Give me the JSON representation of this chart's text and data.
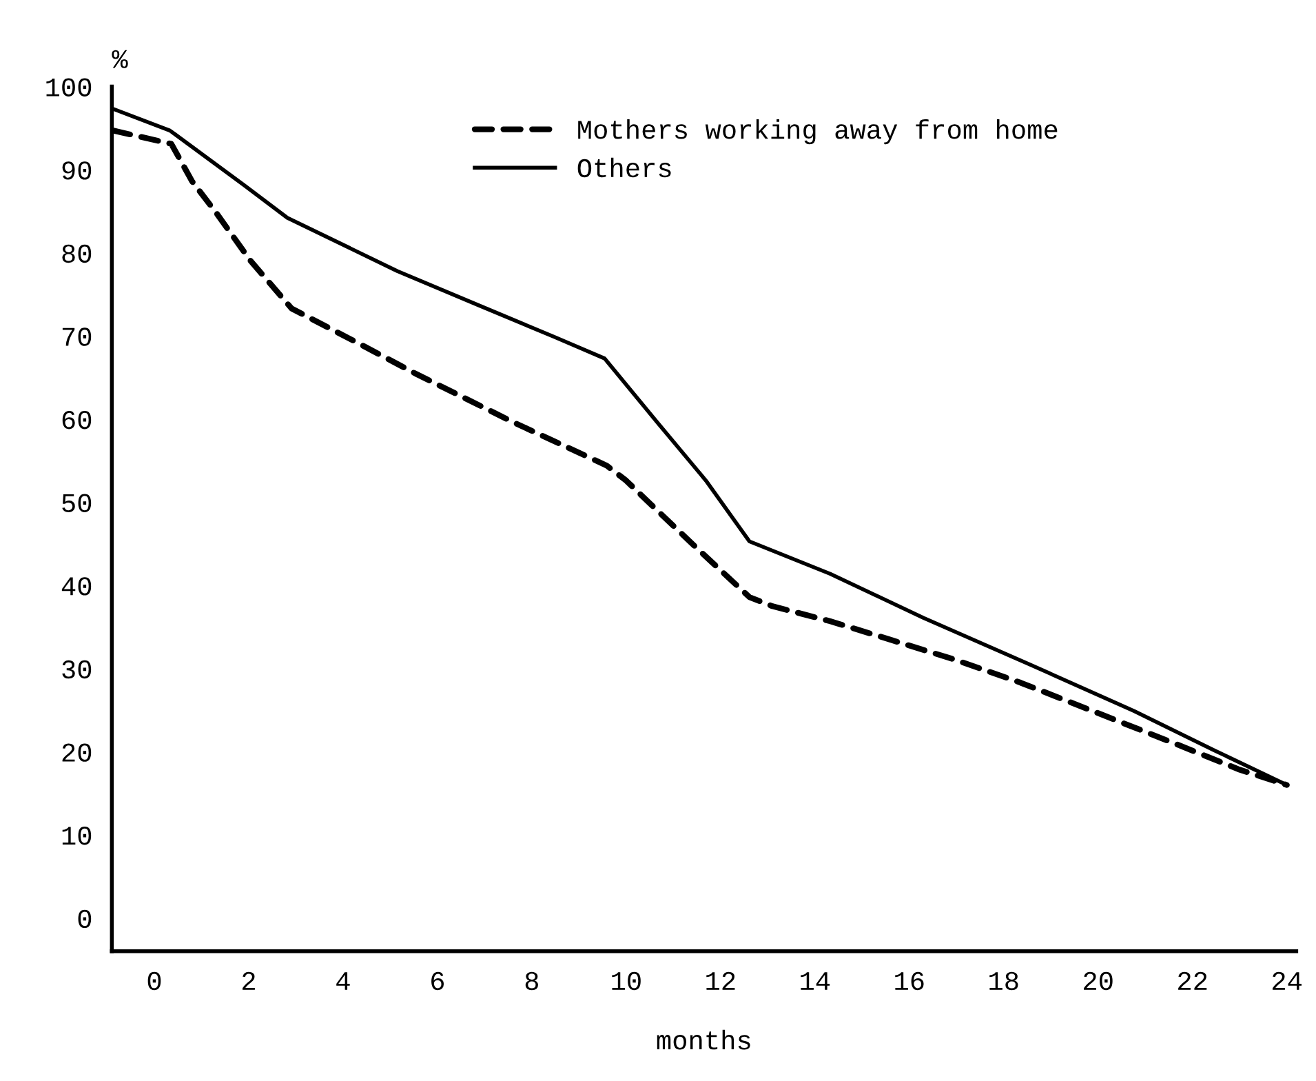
{
  "chart_data": {
    "type": "line",
    "ylabel": "%",
    "xlabel": "months",
    "xlim": [
      -0.9,
      24.2
    ],
    "xticks": [
      0,
      2,
      4,
      6,
      8,
      10,
      12,
      14,
      16,
      18,
      20,
      22,
      24
    ],
    "ylim": [
      -4,
      100
    ],
    "yticks": [
      0,
      10,
      20,
      30,
      40,
      50,
      60,
      70,
      80,
      90,
      100
    ],
    "grid": false,
    "legend": "top right",
    "marker": "none",
    "series": [
      {
        "name": "Mothers working away from home",
        "color": "#000000",
        "line_style": "dashed",
        "x": [
          -0.87,
          0.36,
          0.8,
          1.3,
          2.03,
          2.91,
          4.33,
          5.56,
          7.58,
          9.59,
          10.0,
          10.66,
          11.55,
          12.61,
          13.1,
          14.32,
          15.64,
          16.95,
          18.36,
          20.24,
          21.84,
          22.97,
          24.0
        ],
        "values": [
          94.7,
          93.1,
          88.6,
          84.9,
          79.1,
          73.3,
          69.1,
          65.4,
          59.7,
          54.4,
          52.6,
          49.0,
          44.2,
          38.6,
          37.5,
          35.7,
          33.4,
          31.1,
          28.3,
          24.1,
          20.5,
          17.9,
          16.0
        ]
      },
      {
        "name": "Others",
        "color": "#000000",
        "line_style": "solid",
        "x": [
          -0.87,
          0.33,
          1.91,
          2.82,
          5.15,
          6.91,
          8.47,
          9.54,
          10.66,
          11.69,
          12.61,
          14.32,
          16.3,
          18.55,
          20.76,
          22.45,
          24.0
        ],
        "values": [
          97.3,
          94.7,
          88.1,
          84.2,
          77.8,
          73.6,
          69.9,
          67.3,
          59.6,
          52.6,
          45.3,
          41.4,
          36.1,
          30.5,
          24.9,
          20.2,
          16.0
        ]
      }
    ]
  }
}
